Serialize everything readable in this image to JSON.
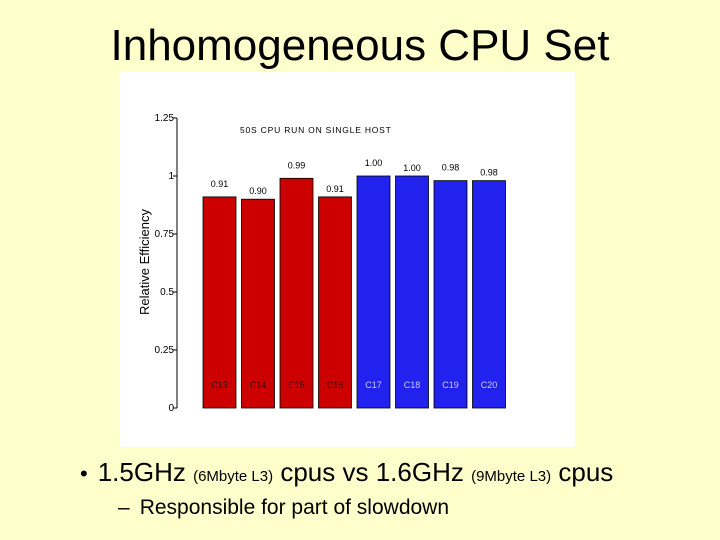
{
  "slide": {
    "title": "Inhomogeneous CPU Set",
    "bullet1": {
      "marker": "•",
      "part1": "1.5GHz ",
      "small1": "(6Mbyte L3)",
      "part2": " cpus vs 1.6GHz ",
      "small2": "(9Mbyte L3)",
      "part3": " cpus"
    },
    "bullet2": {
      "marker": "–",
      "text": "Responsible for part of slowdown"
    }
  },
  "chart_data": {
    "type": "bar",
    "annotation": "50S CPU RUN ON SINGLE HOST",
    "ylabel": "Relative Efficiency",
    "xlabel": "",
    "ylim": [
      0,
      1.25
    ],
    "yticks": [
      {
        "value": 0,
        "label": "0"
      },
      {
        "value": 0.25,
        "label": "0.25"
      },
      {
        "value": 0.5,
        "label": "0.5"
      },
      {
        "value": 0.75,
        "label": "0.75"
      },
      {
        "value": 1,
        "label": "1"
      },
      {
        "value": 1.25,
        "label": "1.25"
      }
    ],
    "categories": [
      "C13",
      "C14",
      "C15",
      "C16",
      "C17",
      "C18",
      "C19",
      "C20"
    ],
    "values": [
      0.91,
      0.9,
      0.99,
      0.91,
      1.0,
      1.0,
      0.98,
      0.98
    ],
    "value_labels": [
      "0.91",
      "0.90",
      "0.99",
      "0.91",
      "1.00",
      "1.00",
      "0.98",
      "0.98"
    ],
    "colors": [
      "#CC0000",
      "#CC0000",
      "#CC0000",
      "#CC0000",
      "#2222EE",
      "#2222EE",
      "#2222EE",
      "#2222EE"
    ],
    "grid": false
  }
}
